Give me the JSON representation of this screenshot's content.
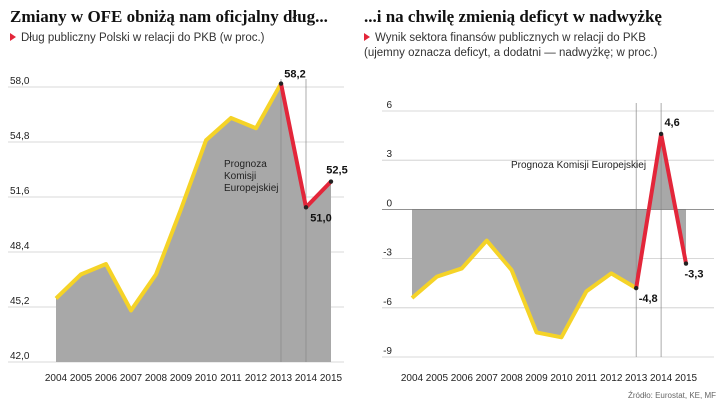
{
  "source": "Źródło: Eurostat, KE, MF",
  "colors": {
    "actual": "#f5d327",
    "forecast": "#e3263a",
    "area": "#a8a8a8",
    "grid": "#cccccc"
  },
  "chart_data": [
    {
      "type": "area",
      "title": "Zmiany w OFE obniżą nam oficjalny dług...",
      "subtitle": "Dług publiczny Polski w relacji do PKB (w proc.)",
      "categories": [
        "2004",
        "2005",
        "2006",
        "2007",
        "2008",
        "2009",
        "2010",
        "2011",
        "2012",
        "2013",
        "2014",
        "2015"
      ],
      "values": [
        45.7,
        47.1,
        47.7,
        45.0,
        47.1,
        50.9,
        54.9,
        56.2,
        55.6,
        58.2,
        51.0,
        52.5
      ],
      "actual_until_index": 9,
      "forecast_from_index": 9,
      "yticks": [
        "42,0",
        "45,2",
        "48,4",
        "51,6",
        "54,8",
        "58,0"
      ],
      "ylim": [
        42.0,
        58.0
      ],
      "annotation": [
        "Prognoza",
        "Komisji",
        "Europejskiej"
      ],
      "labels": [
        {
          "index": 9,
          "text": "58,2"
        },
        {
          "index": 10,
          "text": "51,0"
        },
        {
          "index": 11,
          "text": "52,5"
        }
      ]
    },
    {
      "type": "area",
      "title": "...i na chwilę zmienią deficyt w nadwyżkę",
      "subtitle_lines": [
        "Wynik sektora finansów publicznych w relacji do PKB",
        "(ujemny oznacza deficyt, a dodatni — nadwyżkę; w proc.)"
      ],
      "categories": [
        "2004",
        "2005",
        "2006",
        "2007",
        "2008",
        "2009",
        "2010",
        "2011",
        "2012",
        "2013",
        "2014",
        "2015"
      ],
      "values": [
        -5.4,
        -4.1,
        -3.6,
        -1.9,
        -3.7,
        -7.5,
        -7.8,
        -5.0,
        -3.9,
        -4.8,
        4.6,
        -3.3
      ],
      "actual_until_index": 9,
      "forecast_from_index": 9,
      "yticks": [
        "-9",
        "-6",
        "-3",
        "0",
        "3",
        "6"
      ],
      "ylim": [
        -9,
        6
      ],
      "annotation": [
        "Prognoza Komisji Europejskiej"
      ],
      "labels": [
        {
          "index": 9,
          "text": "-4,8"
        },
        {
          "index": 10,
          "text": "4,6"
        },
        {
          "index": 11,
          "text": "-3,3"
        }
      ]
    }
  ]
}
